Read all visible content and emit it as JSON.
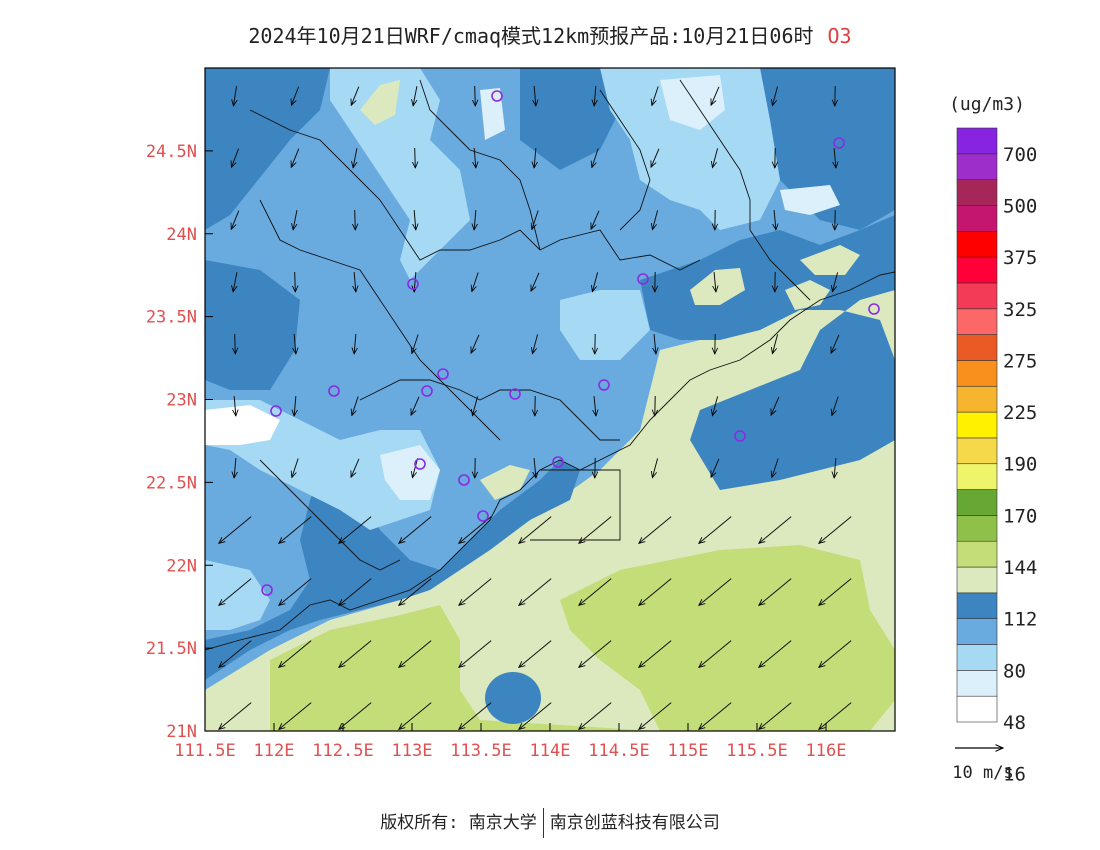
{
  "title": {
    "main": "2024年10月21日WRF/cmaq模式12km预报产品:10月21日06时",
    "species": "O3"
  },
  "map": {
    "lon_min": 111.5,
    "lon_max": 116.5,
    "lat_min": 21.0,
    "lat_max": 25.0,
    "lon_ticks": [
      "111.5E",
      "112E",
      "112.5E",
      "113E",
      "113.5E",
      "114E",
      "114.5E",
      "115E",
      "115.5E",
      "116E"
    ],
    "lat_ticks": [
      "21N",
      "21.5N",
      "22N",
      "22.5N",
      "23N",
      "23.5N",
      "24N",
      "24.5N"
    ],
    "tick_color": "#e05050"
  },
  "legend": {
    "unit": "(ug/m3)",
    "labels": [
      "700",
      "500",
      "375",
      "325",
      "275",
      "225",
      "190",
      "170",
      "144",
      "112",
      "80",
      "48",
      "16"
    ],
    "colors": [
      "#ffffff",
      "#dcf0fb",
      "#a6daf4",
      "#69aadf",
      "#3d85c0",
      "#dce9be",
      "#c3dd78",
      "#8fc04a",
      "#66a833",
      "#eef56b",
      "#f6d94a",
      "#fff100",
      "#f7b42f",
      "#f98f1c",
      "#ea5a24",
      "#fc6767",
      "#f33a57",
      "#ff0038",
      "#ff0000",
      "#c4166e",
      "#a6265a",
      "#9e2ec9",
      "#8624e0"
    ]
  },
  "wind_legend": {
    "label": "10 m/s"
  },
  "stations_color": "#8a2be2",
  "footer": {
    "left": "版权所有: 南京大学",
    "right": "南京创蓝科技有限公司"
  }
}
